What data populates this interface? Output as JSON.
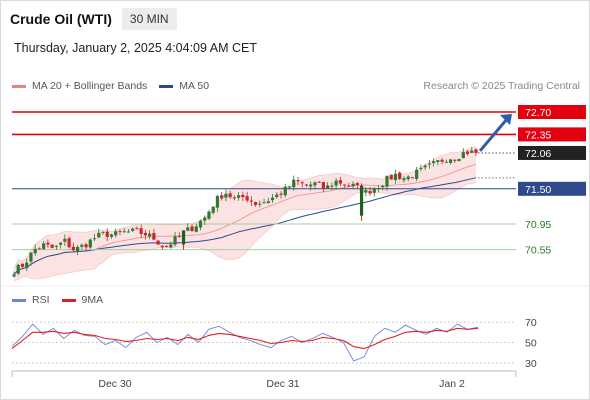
{
  "header": {
    "title": "Crude Oil (WTI)",
    "timeframe": "30 MIN",
    "datetime": "Thursday, January 2, 2025 4:04:09 AM CET"
  },
  "legend": {
    "items": [
      {
        "label": "MA 20 + Bollinger Bands",
        "color": "#f08080"
      },
      {
        "label": "MA 50",
        "color": "#2e4a8c"
      }
    ],
    "credit": "Research © 2025 Trading Central"
  },
  "rsi_legend": {
    "items": [
      {
        "label": "RSI",
        "color": "#6f86d6"
      },
      {
        "label": "9MA",
        "color": "#e02020"
      }
    ]
  },
  "chart_data": [
    {
      "type": "candlestick",
      "x_tick_labels": [
        "Dec 30",
        "Dec 31",
        "Jan 2"
      ],
      "ylim": [
        70.2,
        72.95
      ],
      "series": [
        {
          "name": "MA 20 + Bollinger Bands",
          "color": "#f08080"
        },
        {
          "name": "MA 50",
          "color": "#2e4a8c"
        }
      ],
      "price_path": [
        70.22,
        70.32,
        70.55,
        70.62,
        70.56,
        70.69,
        70.54,
        70.62,
        70.73,
        70.8,
        70.78,
        70.82,
        70.83,
        70.8,
        70.72,
        70.58,
        70.7,
        70.82,
        70.92,
        71.05,
        71.3,
        71.45,
        71.33,
        71.38,
        71.27,
        71.3,
        71.38,
        71.48,
        71.62,
        71.55,
        71.58,
        71.5,
        71.62,
        71.58,
        71.53,
        71.44,
        71.52,
        71.63,
        71.72,
        71.66,
        71.74,
        71.82,
        71.9,
        71.98,
        72.0,
        72.08,
        72.06
      ],
      "levels": [
        {
          "value": 72.7,
          "label": "72.70",
          "kind": "resistance",
          "color": "#e3000f"
        },
        {
          "value": 72.35,
          "label": "72.35",
          "kind": "resistance",
          "color": "#e3000f"
        },
        {
          "value": 72.06,
          "label": "72.06",
          "kind": "last-price",
          "color": "#222222"
        },
        {
          "value": 71.5,
          "label": "71.50",
          "kind": "pivot",
          "color": "#2e4a8c"
        },
        {
          "value": 70.95,
          "label": "70.95",
          "kind": "support",
          "color": "#3a9a3a"
        },
        {
          "value": 70.55,
          "label": "70.55",
          "kind": "support",
          "color": "#3a9a3a"
        }
      ],
      "annotation": {
        "kind": "arrow-up",
        "color": "#2e5ca8",
        "from": 72.06,
        "to": 72.7
      }
    },
    {
      "type": "line",
      "title": "RSI",
      "ylim": [
        25,
        78
      ],
      "y_tick_labels": [
        "70",
        "50",
        "30"
      ],
      "y_ticks": [
        70,
        50,
        30
      ],
      "series": [
        {
          "name": "RSI",
          "color": "#6f86d6",
          "values": [
            46,
            56,
            68,
            58,
            64,
            54,
            62,
            57,
            56,
            48,
            52,
            45,
            55,
            60,
            50,
            55,
            48,
            58,
            50,
            63,
            66,
            60,
            55,
            52,
            48,
            45,
            52,
            56,
            50,
            54,
            59,
            55,
            50,
            32,
            36,
            56,
            64,
            60,
            67,
            62,
            58,
            64,
            60,
            68,
            63,
            65
          ]
        },
        {
          "name": "9MA",
          "color": "#e02020",
          "values": [
            44,
            52,
            60,
            60,
            61,
            59,
            60,
            58,
            57,
            54,
            53,
            51,
            52,
            54,
            53,
            54,
            52,
            55,
            53,
            57,
            59,
            58,
            56,
            54,
            52,
            49,
            50,
            52,
            51,
            52,
            55,
            54,
            52,
            46,
            44,
            48,
            53,
            56,
            60,
            61,
            60,
            62,
            61,
            64,
            63,
            64
          ]
        }
      ]
    }
  ]
}
